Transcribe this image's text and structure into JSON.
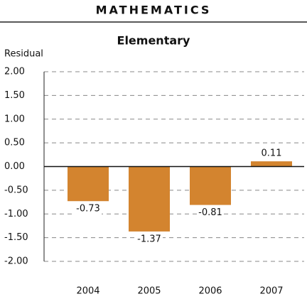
{
  "chart_data": {
    "type": "bar",
    "title": "MATHEMATICS",
    "subtitle": "Elementary",
    "y_label": "Residual",
    "categories": [
      "2004",
      "2005",
      "2006",
      "2007"
    ],
    "values": [
      -0.73,
      -1.37,
      -0.81,
      0.11
    ],
    "color": "#d3842f",
    "ylim": [
      -2,
      2
    ],
    "yticks": [
      {
        "value": -2,
        "label": "-2.00"
      },
      {
        "value": -1.5,
        "label": "-1.50"
      },
      {
        "value": -1,
        "label": "-1.00"
      },
      {
        "value": -0.5,
        "label": "-0.50"
      },
      {
        "value": 0,
        "label": "0.00"
      },
      {
        "value": 0.5,
        "label": "0.50"
      },
      {
        "value": 1,
        "label": "1.00"
      },
      {
        "value": 1.5,
        "label": "1.50"
      },
      {
        "value": 2,
        "label": "2.00"
      }
    ],
    "grid": true
  }
}
